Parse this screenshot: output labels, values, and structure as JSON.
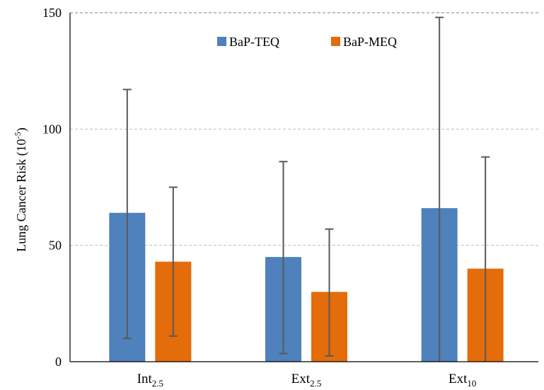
{
  "chart_data": {
    "type": "bar",
    "categories": [
      {
        "base": "Int",
        "sub": "2.5"
      },
      {
        "base": "Ext",
        "sub": "2.5"
      },
      {
        "base": "Ext",
        "sub": "10"
      }
    ],
    "series": [
      {
        "name": "BaP-TEQ",
        "color": "#4f81bd",
        "values": [
          64,
          45,
          66
        ],
        "error_low": [
          10,
          3.5,
          0
        ],
        "error_high": [
          117,
          86,
          148
        ]
      },
      {
        "name": "BaP-MEQ",
        "color": "#e46c0a",
        "values": [
          43,
          30,
          40
        ],
        "error_low": [
          11,
          2.5,
          0
        ],
        "error_high": [
          75,
          57,
          88
        ]
      }
    ],
    "ylabel": {
      "text": "Lung Cancer Risk (10",
      "sup": "-5",
      "suffix": ")"
    },
    "ylim": [
      0,
      150
    ],
    "yticks": [
      "0",
      "50",
      "100",
      "150"
    ],
    "ytick_values": [
      0,
      50,
      100,
      150
    ],
    "grid": true,
    "legend_position": "top-center",
    "error_bar_color": "#595959"
  }
}
